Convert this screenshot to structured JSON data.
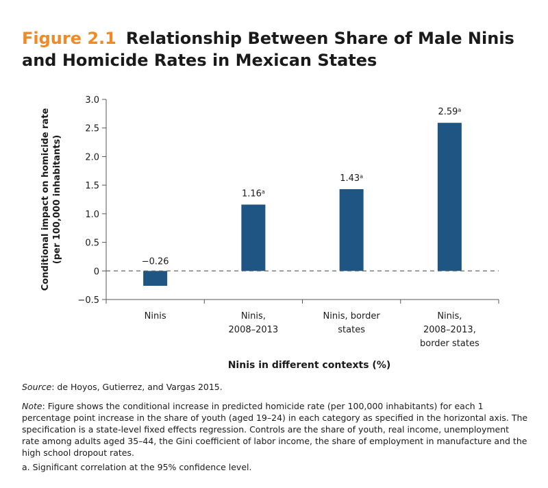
{
  "figure": {
    "number": "Figure 2.1",
    "title": "Relationship Between Share of Male Ninis and Homicide Rates in Mexican States"
  },
  "chart_data": {
    "type": "bar",
    "categories": [
      [
        "Ninis"
      ],
      [
        "Ninis,",
        "2008–2013"
      ],
      [
        "Ninis, border",
        "states"
      ],
      [
        "Ninis,",
        "2008–2013,",
        "border states"
      ]
    ],
    "values": [
      -0.26,
      1.16,
      1.43,
      2.59
    ],
    "data_labels": [
      "−0.26",
      "1.16",
      "1.43",
      "2.59"
    ],
    "significance_marks": [
      "",
      "a",
      "a",
      "a"
    ],
    "ylabel_lines": [
      "Conditional impact on homicide rate",
      "(per 100,000 inhabitants)"
    ],
    "xlabel": "Ninis in different contexts (%)",
    "ylim": [
      -0.5,
      3.0
    ],
    "y_ticks": [
      -0.5,
      0,
      0.5,
      1.0,
      1.5,
      2.0,
      2.5,
      3.0
    ],
    "y_tick_labels": [
      "−0.5",
      "0",
      "0.5",
      "1.0",
      "1.5",
      "2.0",
      "2.5",
      "3.0"
    ],
    "zero_line": "dashed",
    "grid": false,
    "bar_color": "#1f5582"
  },
  "source": {
    "label": "Source",
    "text": ": de Hoyos, Gutierrez, and Vargas 2015."
  },
  "note": {
    "label": "Note",
    "text": ": Figure shows the conditional increase in predicted homicide rate (per 100,000 inhabitants) for each 1 percentage point increase in the share of youth (aged 19–24) in each category as specified in the horizontal axis. The specification is a state-level fixed effects regression. Controls are the share of youth, real income, unemployment rate among adults aged 35–44, the Gini coefficient of labor income, the share of employment in manufacture and the high school dropout rates."
  },
  "footnote": "a. Significant correlation at the 95% confidence level.",
  "colors": {
    "accent": "#f08a24",
    "bar": "#1f5582",
    "axis": "#555555"
  }
}
